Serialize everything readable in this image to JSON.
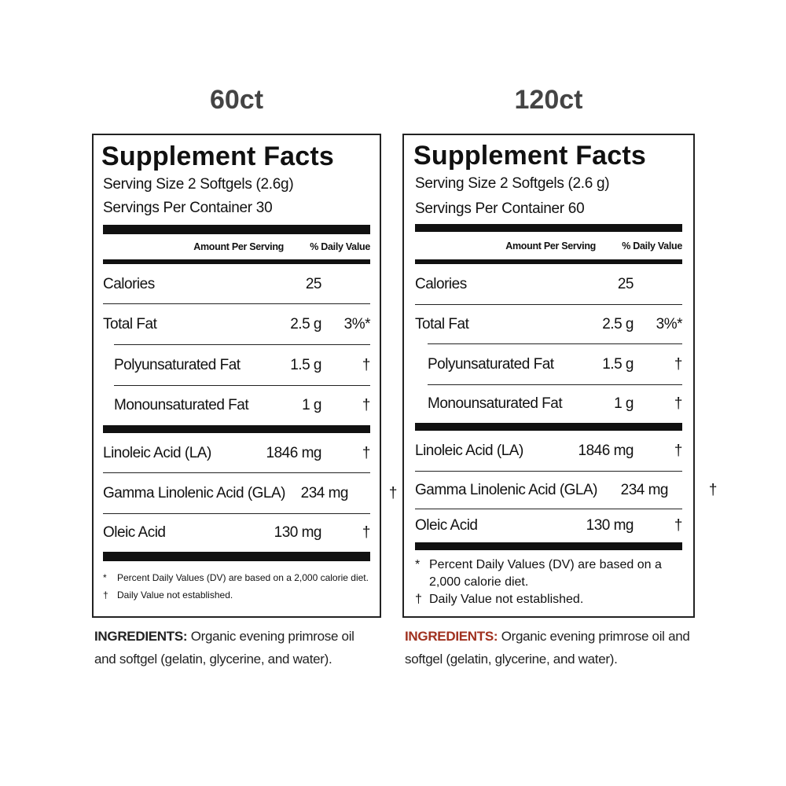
{
  "panels": [
    {
      "heading": "60ct",
      "title": "Supplement Facts",
      "serving_size": "Serving Size 2 Softgels (2.6g)",
      "servings_per_container": "Servings Per Container  30",
      "header": {
        "amount": "Amount Per Serving",
        "dv": "% Daily Value"
      },
      "rows": [
        [
          "Calories",
          "25"
        ],
        [
          "Total Fat",
          "2.5 g",
          "3%*"
        ],
        [
          "Polyunsaturated Fat",
          "1.5 g",
          "†"
        ],
        [
          "Monounsaturated Fat",
          "1 g",
          "†"
        ],
        [
          "Linoleic Acid (LA)",
          "1846 mg",
          "†"
        ],
        [
          "Gamma Linolenic Acid (GLA)",
          "234 mg",
          "†"
        ],
        [
          "Oleic Acid",
          "130 mg",
          "†"
        ]
      ],
      "footnotes": [
        [
          "*",
          "Percent Daily Values (DV) are based on a 2,000 calorie diet."
        ],
        [
          "†",
          "Daily Value not established."
        ]
      ],
      "ingredients": {
        "label": "INGREDIENTS:",
        "text": "Organic evening primrose oil and softgel (gelatin, glycerine, and water)."
      }
    },
    {
      "heading": "120ct",
      "title": "Supplement Facts",
      "serving_size": "Serving Size 2 Softgels (2.6 g)",
      "servings_per_container": "Servings Per Container 60",
      "header": {
        "amount": "Amount Per Serving",
        "dv": "% Daily Value"
      },
      "rows": [
        [
          "Calories",
          "25"
        ],
        [
          "Total Fat",
          "2.5 g",
          "3%*"
        ],
        [
          "Polyunsaturated Fat",
          "1.5 g",
          "†"
        ],
        [
          "Monounsaturated Fat",
          "1 g",
          "†"
        ],
        [
          "Linoleic Acid (LA)",
          "1846 mg",
          "†"
        ],
        [
          "Gamma Linolenic Acid (GLA)",
          "234 mg",
          "†"
        ],
        [
          "Oleic Acid",
          "130 mg",
          "†"
        ]
      ],
      "footnotes": [
        [
          "*",
          "Percent Daily Values (DV) are based on a 2,000 calorie diet."
        ],
        [
          "†",
          "Daily Value not established."
        ]
      ],
      "ingredients": {
        "label": "INGREDIENTS:",
        "text": "Organic evening primrose oil and softgel (gelatin, glycerine, and water)."
      }
    }
  ]
}
